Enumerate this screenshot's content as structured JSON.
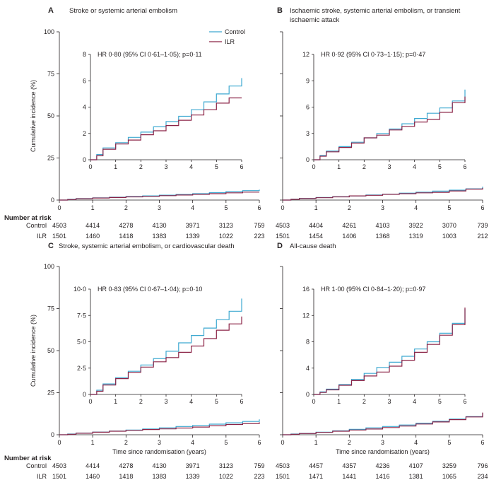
{
  "colors": {
    "control": "#3ea9d1",
    "ilr": "#8b2346"
  },
  "legend": {
    "control": "Control",
    "ilr": "ILR"
  },
  "risk_table": {
    "header": "Number at risk",
    "row_control": "Control",
    "row_ilr": "ILR"
  },
  "chart_data": [
    {
      "panel": "A",
      "title_lines": [
        "Stroke or systemic arterial embolism"
      ],
      "type": "line",
      "ylabel": "Cumulative incidence (%)",
      "xlabel": "",
      "x_ticks": [
        "0",
        "1",
        "2",
        "3",
        "4",
        "5",
        "6"
      ],
      "y_ticks": [
        "0",
        "25",
        "50",
        "75",
        "100"
      ],
      "xlim": [
        0,
        6
      ],
      "ylim": [
        0,
        100
      ],
      "inset": {
        "hr_text": "HR 0·80 (95% CI 0·61–1·05); p=0·11",
        "y_ticks": [
          "0",
          "2",
          "4",
          "6",
          "8"
        ],
        "x_ticks": [
          "0",
          "1",
          "2",
          "3",
          "4",
          "5",
          "6"
        ],
        "ylim": [
          0,
          8
        ],
        "xlim": [
          0,
          6
        ]
      },
      "series": [
        {
          "name": "Control",
          "x": [
            0,
            0.25,
            0.5,
            1,
            1.5,
            2,
            2.5,
            3,
            3.5,
            4,
            4.5,
            5,
            5.5,
            6
          ],
          "y": [
            0,
            0.4,
            0.9,
            1.3,
            1.7,
            2.1,
            2.5,
            2.9,
            3.3,
            3.8,
            4.4,
            5.0,
            5.6,
            6.2
          ]
        },
        {
          "name": "ILR",
          "x": [
            0,
            0.25,
            0.5,
            1,
            1.5,
            2,
            2.5,
            3,
            3.5,
            4,
            4.5,
            5,
            5.5,
            6
          ],
          "y": [
            0,
            0.3,
            0.8,
            1.2,
            1.5,
            1.9,
            2.2,
            2.6,
            3.0,
            3.4,
            3.8,
            4.3,
            4.7,
            4.7
          ]
        }
      ],
      "number_at_risk": {
        "control": [
          "4503",
          "4414",
          "4278",
          "4130",
          "3971",
          "3123",
          "759"
        ],
        "ilr": [
          "1501",
          "1460",
          "1418",
          "1383",
          "1339",
          "1022",
          "223"
        ]
      }
    },
    {
      "panel": "B",
      "title_lines": [
        "Ischaemic stroke, systemic arterial embolism, or transient",
        "ischaemic attack"
      ],
      "type": "line",
      "ylabel": "",
      "xlabel": "",
      "x_ticks": [
        "0",
        "1",
        "2",
        "3",
        "4",
        "5",
        "6"
      ],
      "y_ticks": [],
      "xlim": [
        0,
        6
      ],
      "ylim": [
        0,
        100
      ],
      "inset": {
        "hr_text": "HR 0·92 (95% CI 0·73–1·15); p=0·47",
        "y_ticks": [
          "0",
          "3",
          "6",
          "9",
          "12"
        ],
        "x_ticks": [
          "0",
          "1",
          "2",
          "3",
          "4",
          "5",
          "6"
        ],
        "ylim": [
          0,
          12
        ],
        "xlim": [
          0,
          6
        ]
      },
      "series": [
        {
          "name": "Control",
          "x": [
            0,
            0.25,
            0.5,
            1,
            1.5,
            2,
            2.5,
            3,
            3.5,
            4,
            4.5,
            5,
            5.5,
            6
          ],
          "y": [
            0,
            0.5,
            1.0,
            1.5,
            2.0,
            2.5,
            3.0,
            3.5,
            4.1,
            4.7,
            5.3,
            5.9,
            6.7,
            8.0
          ]
        },
        {
          "name": "ILR",
          "x": [
            0,
            0.25,
            0.5,
            1,
            1.5,
            2,
            2.5,
            3,
            3.5,
            4,
            4.5,
            5,
            5.5,
            6
          ],
          "y": [
            0,
            0.4,
            0.9,
            1.4,
            1.9,
            2.5,
            2.8,
            3.4,
            3.8,
            4.3,
            4.6,
            5.4,
            6.5,
            7.2
          ]
        }
      ],
      "number_at_risk": {
        "control": [
          "4503",
          "4404",
          "4261",
          "4103",
          "3922",
          "3070",
          "739"
        ],
        "ilr": [
          "1501",
          "1454",
          "1406",
          "1368",
          "1319",
          "1003",
          "212"
        ]
      }
    },
    {
      "panel": "C",
      "title_lines": [
        "Stroke, systemic arterial embolism, or cardiovascular death"
      ],
      "type": "line",
      "ylabel": "Cumulative incidence (%)",
      "xlabel": "Time since randomisation (years)",
      "x_ticks": [
        "0",
        "1",
        "2",
        "3",
        "4",
        "5",
        "6"
      ],
      "y_ticks": [
        "0",
        "25",
        "50",
        "75",
        "100"
      ],
      "xlim": [
        0,
        6
      ],
      "ylim": [
        0,
        100
      ],
      "inset": {
        "hr_text": "HR 0·83 (95% CI 0·67–1·04); p=0·10",
        "y_ticks": [
          "0",
          "2·5",
          "5·0",
          "7·5",
          "10·0"
        ],
        "x_ticks": [
          "0",
          "1",
          "2",
          "3",
          "4",
          "5",
          "6"
        ],
        "ylim": [
          0,
          10
        ],
        "xlim": [
          0,
          6
        ]
      },
      "series": [
        {
          "name": "Control",
          "x": [
            0,
            0.25,
            0.5,
            1,
            1.5,
            2,
            2.5,
            3,
            3.5,
            4,
            4.5,
            5,
            5.5,
            6
          ],
          "y": [
            0,
            0.4,
            1.0,
            1.6,
            2.2,
            2.8,
            3.4,
            4.1,
            4.9,
            5.6,
            6.3,
            7.1,
            7.9,
            9.1
          ]
        },
        {
          "name": "ILR",
          "x": [
            0,
            0.25,
            0.5,
            1,
            1.5,
            2,
            2.5,
            3,
            3.5,
            4,
            4.5,
            5,
            5.5,
            6
          ],
          "y": [
            0,
            0.3,
            0.9,
            1.5,
            2.1,
            2.6,
            3.1,
            3.5,
            4.0,
            4.6,
            5.3,
            6.1,
            6.7,
            7.4
          ]
        }
      ],
      "number_at_risk": {
        "control": [
          "4503",
          "4414",
          "4278",
          "4130",
          "3971",
          "3123",
          "759"
        ],
        "ilr": [
          "1501",
          "1460",
          "1418",
          "1383",
          "1339",
          "1022",
          "223"
        ]
      }
    },
    {
      "panel": "D",
      "title_lines": [
        "All-cause death"
      ],
      "type": "line",
      "ylabel": "",
      "xlabel": "Time since randomisation (years)",
      "x_ticks": [
        "0",
        "1",
        "2",
        "3",
        "4",
        "5",
        "6"
      ],
      "y_ticks": [],
      "xlim": [
        0,
        6
      ],
      "ylim": [
        0,
        100
      ],
      "inset": {
        "hr_text": "HR 1·00 (95% CI 0·84–1·20); p=0·97",
        "y_ticks": [
          "0",
          "4",
          "8",
          "12",
          "16"
        ],
        "x_ticks": [
          "0",
          "1",
          "2",
          "3",
          "4",
          "5",
          "6"
        ],
        "ylim": [
          0,
          16
        ],
        "xlim": [
          0,
          6
        ]
      },
      "series": [
        {
          "name": "Control",
          "x": [
            0,
            0.25,
            0.5,
            1,
            1.5,
            2,
            2.5,
            3,
            3.5,
            4,
            4.5,
            5,
            5.5,
            6
          ],
          "y": [
            0,
            0.4,
            0.8,
            1.5,
            2.3,
            3.2,
            4.1,
            4.9,
            5.8,
            6.9,
            8.0,
            9.3,
            10.8,
            13.0
          ]
        },
        {
          "name": "ILR",
          "x": [
            0,
            0.25,
            0.5,
            1,
            1.5,
            2,
            2.5,
            3,
            3.5,
            4,
            4.5,
            5,
            5.5,
            6
          ],
          "y": [
            0,
            0.3,
            0.7,
            1.4,
            2.1,
            2.8,
            3.4,
            4.3,
            5.2,
            6.4,
            7.6,
            9.0,
            10.6,
            13.2
          ]
        }
      ],
      "number_at_risk": {
        "control": [
          "4503",
          "4457",
          "4357",
          "4236",
          "4107",
          "3259",
          "796"
        ],
        "ilr": [
          "1501",
          "1471",
          "1441",
          "1416",
          "1381",
          "1065",
          "234"
        ]
      }
    }
  ]
}
